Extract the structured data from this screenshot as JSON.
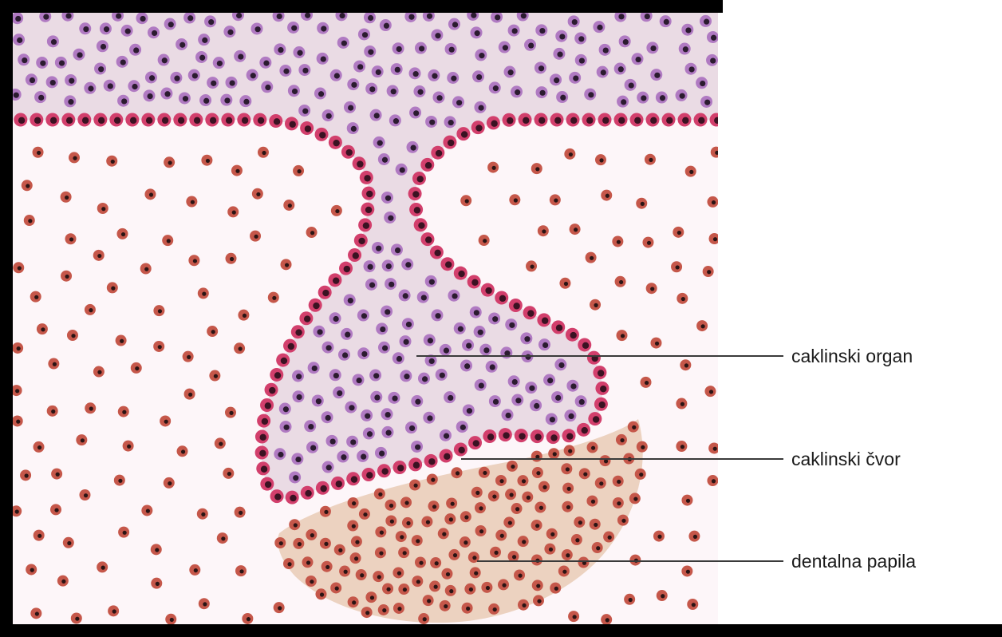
{
  "labels": {
    "enamel_organ": "caklinski organ",
    "enamel_knot": "caklinski čvor",
    "dental_papilla": "dentalna papila"
  },
  "colors": {
    "background": "#fdf6f9",
    "frame": "#000000",
    "epithelium_fill": "#eadbe4",
    "epithelial_cell": "#b07ac2",
    "epithelial_nucleus": "#2b1b2f",
    "basal_cell_ring": "#d23f6c",
    "basal_nucleus": "#3a1222",
    "mesenchyme_cell": "#c5574a",
    "mesenchyme_nucleus": "#2a1414",
    "papilla_fill": "#ecd2c0",
    "leader_line": "#3a3a3a"
  }
}
